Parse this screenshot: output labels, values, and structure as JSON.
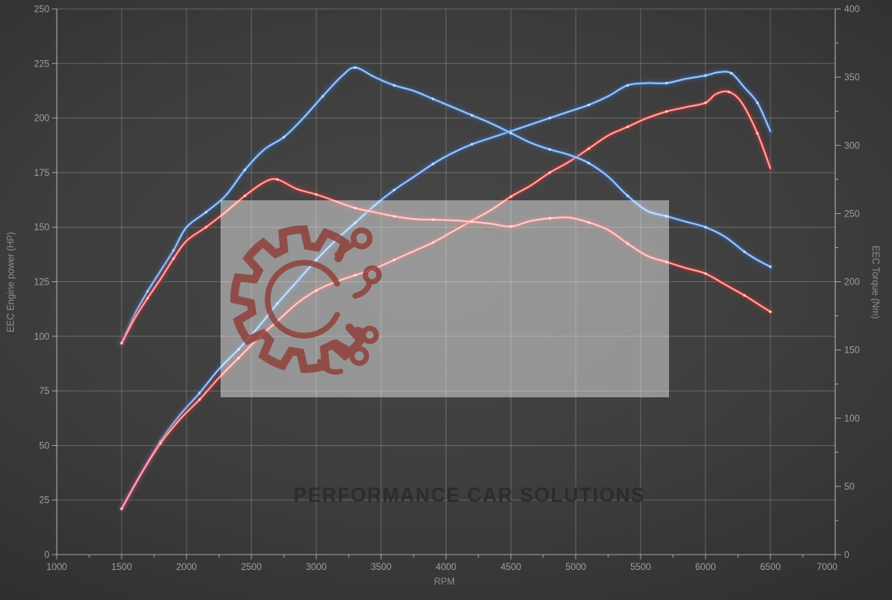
{
  "watermark": {
    "text": "PERFORMANCE CAR SOLUTIONS",
    "box_color": "rgba(255,255,255,0.44)",
    "logo_color": "#8f3e37",
    "text_color": "rgba(42,42,42,0.9)"
  },
  "style": {
    "background": "#3d3d3d",
    "grid_color": "rgba(255,255,255,0.22)",
    "axis_color": "rgba(255,255,255,0.5)",
    "tick_label_color": "#9e9e9e",
    "blue_glow": "#2e72d2",
    "blue_core": "#a8cbf2",
    "red_glow": "#e02c2c",
    "red_core": "#ffb0ac"
  },
  "chart_data": {
    "type": "line",
    "xlabel": "RPM",
    "x_range": [
      1000,
      7000
    ],
    "x_major_step": 500,
    "x_minor_step": 250,
    "left_ylabel": "EEC Engine power (HP)",
    "left_ylim": [
      0,
      250
    ],
    "left_step": 25,
    "right_ylabel": "EEC Torque (Nm)",
    "right_ylim": [
      0,
      400
    ],
    "right_major_step": 50,
    "right_minor_step": 25,
    "grid": true,
    "legend": false,
    "series": [
      {
        "name": "power-blue",
        "axis": "left",
        "unit": "HP",
        "color": "#2e72d2",
        "core": "#a8cbf2",
        "dot": "#cfe2ff",
        "points": [
          [
            1500,
            21
          ],
          [
            1650,
            37
          ],
          [
            1800,
            52
          ],
          [
            1950,
            64
          ],
          [
            2100,
            74
          ],
          [
            2250,
            85
          ],
          [
            2400,
            94
          ],
          [
            2550,
            104
          ],
          [
            2700,
            115
          ],
          [
            2850,
            125
          ],
          [
            3000,
            135
          ],
          [
            3150,
            144
          ],
          [
            3300,
            152
          ],
          [
            3450,
            160
          ],
          [
            3600,
            167
          ],
          [
            3750,
            173
          ],
          [
            3900,
            179
          ],
          [
            4050,
            184
          ],
          [
            4200,
            188
          ],
          [
            4350,
            191
          ],
          [
            4500,
            194
          ],
          [
            4650,
            197
          ],
          [
            4800,
            200
          ],
          [
            4950,
            203
          ],
          [
            5100,
            206
          ],
          [
            5250,
            210
          ],
          [
            5400,
            215
          ],
          [
            5550,
            216
          ],
          [
            5700,
            216
          ],
          [
            5850,
            218
          ],
          [
            6000,
            219.5
          ],
          [
            6100,
            221
          ],
          [
            6200,
            220.5
          ],
          [
            6300,
            214
          ],
          [
            6400,
            207
          ],
          [
            6500,
            194
          ]
        ]
      },
      {
        "name": "power-red",
        "axis": "left",
        "unit": "HP",
        "color": "#e02c2c",
        "core": "#ffb0ac",
        "dot": "#ffd3d0",
        "points": [
          [
            1500,
            21
          ],
          [
            1650,
            37
          ],
          [
            1800,
            51
          ],
          [
            1950,
            62
          ],
          [
            2100,
            71
          ],
          [
            2250,
            81
          ],
          [
            2400,
            90
          ],
          [
            2550,
            99
          ],
          [
            2700,
            107
          ],
          [
            2850,
            115
          ],
          [
            3000,
            121
          ],
          [
            3150,
            125
          ],
          [
            3300,
            128
          ],
          [
            3450,
            131
          ],
          [
            3600,
            135
          ],
          [
            3750,
            139
          ],
          [
            3900,
            143
          ],
          [
            4050,
            148
          ],
          [
            4200,
            153
          ],
          [
            4350,
            158
          ],
          [
            4500,
            164
          ],
          [
            4650,
            169
          ],
          [
            4800,
            175
          ],
          [
            4950,
            180
          ],
          [
            5100,
            186
          ],
          [
            5250,
            192
          ],
          [
            5400,
            196
          ],
          [
            5550,
            200
          ],
          [
            5700,
            203
          ],
          [
            5850,
            205
          ],
          [
            6000,
            207
          ],
          [
            6080,
            211
          ],
          [
            6180,
            212
          ],
          [
            6280,
            207
          ],
          [
            6400,
            193
          ],
          [
            6500,
            177
          ]
        ]
      },
      {
        "name": "torque-blue",
        "axis": "right",
        "unit": "Nm",
        "color": "#2e72d2",
        "core": "#a8cbf2",
        "dot": "#cfe2ff",
        "points": [
          [
            1500,
            155
          ],
          [
            1600,
            176
          ],
          [
            1700,
            193
          ],
          [
            1800,
            208
          ],
          [
            1900,
            223
          ],
          [
            2000,
            240
          ],
          [
            2150,
            251
          ],
          [
            2300,
            263
          ],
          [
            2450,
            282
          ],
          [
            2600,
            297
          ],
          [
            2750,
            306
          ],
          [
            2900,
            320
          ],
          [
            3050,
            336
          ],
          [
            3200,
            351
          ],
          [
            3300,
            357
          ],
          [
            3450,
            350
          ],
          [
            3600,
            344
          ],
          [
            3750,
            340
          ],
          [
            3900,
            334
          ],
          [
            4050,
            328
          ],
          [
            4200,
            322
          ],
          [
            4350,
            316
          ],
          [
            4500,
            309
          ],
          [
            4650,
            302
          ],
          [
            4800,
            297
          ],
          [
            4950,
            293
          ],
          [
            5100,
            287
          ],
          [
            5250,
            277
          ],
          [
            5400,
            263
          ],
          [
            5550,
            252
          ],
          [
            5700,
            248
          ],
          [
            5850,
            244
          ],
          [
            6000,
            240
          ],
          [
            6150,
            233
          ],
          [
            6300,
            222
          ],
          [
            6400,
            216
          ],
          [
            6500,
            211
          ]
        ]
      },
      {
        "name": "torque-red",
        "axis": "right",
        "unit": "Nm",
        "color": "#e02c2c",
        "core": "#ffb0ac",
        "dot": "#ffd3d0",
        "points": [
          [
            1500,
            155
          ],
          [
            1600,
            173
          ],
          [
            1700,
            188
          ],
          [
            1800,
            202
          ],
          [
            1900,
            217
          ],
          [
            2000,
            230
          ],
          [
            2150,
            240
          ],
          [
            2300,
            251
          ],
          [
            2450,
            263
          ],
          [
            2600,
            273
          ],
          [
            2700,
            275
          ],
          [
            2850,
            268
          ],
          [
            3000,
            264
          ],
          [
            3150,
            259
          ],
          [
            3300,
            254
          ],
          [
            3450,
            251
          ],
          [
            3600,
            248
          ],
          [
            3750,
            246
          ],
          [
            3900,
            245.5
          ],
          [
            4050,
            245
          ],
          [
            4200,
            244
          ],
          [
            4350,
            242.5
          ],
          [
            4500,
            240.5
          ],
          [
            4650,
            244.5
          ],
          [
            4800,
            246.5
          ],
          [
            4950,
            247
          ],
          [
            5100,
            243.5
          ],
          [
            5250,
            238
          ],
          [
            5400,
            228
          ],
          [
            5550,
            219
          ],
          [
            5700,
            214.5
          ],
          [
            5850,
            210
          ],
          [
            6000,
            206
          ],
          [
            6150,
            198
          ],
          [
            6300,
            190
          ],
          [
            6400,
            184
          ],
          [
            6500,
            178
          ]
        ]
      }
    ]
  }
}
